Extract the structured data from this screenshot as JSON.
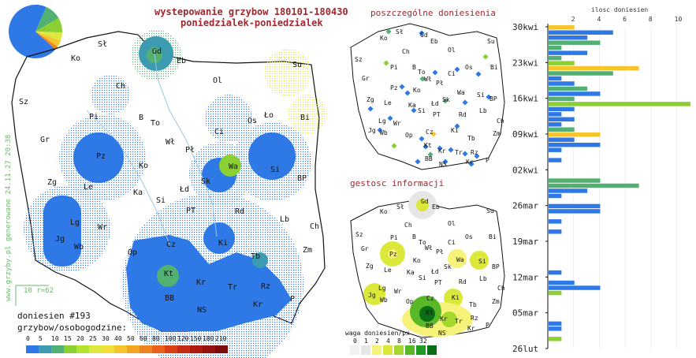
{
  "header": {
    "title": "wystepowanie grzybow 180101-180430",
    "subtitle": "poniedzialek-poniedzialek"
  },
  "side_labels": {
    "generated": "www.grzyby.pl generowane 24.11.27 20:38",
    "reports": "doniesien #193",
    "grid": "10 r=62"
  },
  "main_map": {
    "cities": [
      {
        "name": "Sł",
        "x": 124,
        "y": 59
      },
      {
        "name": "Gd",
        "x": 193,
        "y": 68
      },
      {
        "name": "Eb",
        "x": 224,
        "y": 80
      },
      {
        "name": "Su",
        "x": 371,
        "y": 85
      },
      {
        "name": "Ko",
        "x": 90,
        "y": 77
      },
      {
        "name": "Ol",
        "x": 270,
        "y": 105
      },
      {
        "name": "Ch",
        "x": 147,
        "y": 112
      },
      {
        "name": "Sz",
        "x": 24,
        "y": 132
      },
      {
        "name": "Pi",
        "x": 113,
        "y": 151
      },
      {
        "name": "B",
        "x": 176,
        "y": 152
      },
      {
        "name": "To",
        "x": 191,
        "y": 159
      },
      {
        "name": "Ło",
        "x": 335,
        "y": 149
      },
      {
        "name": "Bi",
        "x": 381,
        "y": 152
      },
      {
        "name": "Os",
        "x": 314,
        "y": 156
      },
      {
        "name": "Ci",
        "x": 272,
        "y": 170
      },
      {
        "name": "Wł",
        "x": 210,
        "y": 183
      },
      {
        "name": "Gr",
        "x": 51,
        "y": 180
      },
      {
        "name": "Pł",
        "x": 235,
        "y": 193
      },
      {
        "name": "Pz",
        "x": 122,
        "y": 201
      },
      {
        "name": "Ko",
        "x": 176,
        "y": 213
      },
      {
        "name": "Wa",
        "x": 290,
        "y": 214
      },
      {
        "name": "Si",
        "x": 343,
        "y": 218
      },
      {
        "name": "Zg",
        "x": 60,
        "y": 234
      },
      {
        "name": "Le",
        "x": 106,
        "y": 240
      },
      {
        "name": "Sk",
        "x": 255,
        "y": 233
      },
      {
        "name": "BP",
        "x": 377,
        "y": 229
      },
      {
        "name": "Ka",
        "x": 169,
        "y": 247
      },
      {
        "name": "Łd",
        "x": 228,
        "y": 243
      },
      {
        "name": "Si",
        "x": 198,
        "y": 257
      },
      {
        "name": "Lb",
        "x": 355,
        "y": 281
      },
      {
        "name": "PT",
        "x": 236,
        "y": 270
      },
      {
        "name": "Rd",
        "x": 298,
        "y": 271
      },
      {
        "name": "Lg",
        "x": 89,
        "y": 285
      },
      {
        "name": "Wr",
        "x": 124,
        "y": 291
      },
      {
        "name": "Ch",
        "x": 393,
        "y": 290
      },
      {
        "name": "Jg",
        "x": 70,
        "y": 306
      },
      {
        "name": "Wb",
        "x": 94,
        "y": 316
      },
      {
        "name": "Cz",
        "x": 211,
        "y": 313
      },
      {
        "name": "Ki",
        "x": 277,
        "y": 311
      },
      {
        "name": "Zm",
        "x": 384,
        "y": 320
      },
      {
        "name": "Op",
        "x": 162,
        "y": 323
      },
      {
        "name": "Tb",
        "x": 318,
        "y": 328
      },
      {
        "name": "Kt",
        "x": 208,
        "y": 350
      },
      {
        "name": "Kr",
        "x": 249,
        "y": 361
      },
      {
        "name": "Tr",
        "x": 289,
        "y": 367
      },
      {
        "name": "Rz",
        "x": 331,
        "y": 366
      },
      {
        "name": "BB",
        "x": 209,
        "y": 381
      },
      {
        "name": "Kr",
        "x": 321,
        "y": 389
      },
      {
        "name": "P",
        "x": 368,
        "y": 382
      },
      {
        "name": "NS",
        "x": 250,
        "y": 396
      }
    ]
  },
  "legend": {
    "title": "grzybow/osobogodzine:",
    "ticks": [
      "0",
      "5",
      "10",
      "15",
      "20",
      "25",
      "30",
      "40",
      "50",
      "60",
      "80",
      "100",
      "120",
      "150",
      "180",
      "210"
    ],
    "colors": [
      "#2e79e6",
      "#3c9bb0",
      "#53b073",
      "#8ccf33",
      "#b3e233",
      "#dce840",
      "#f1e03a",
      "#f6c52e",
      "#f4a524",
      "#ef831f",
      "#e8601a",
      "#d94016",
      "#c52a12",
      "#ad1b10",
      "#951210",
      "#7a0c0b"
    ]
  },
  "small_map_top": {
    "title": "poszczególne doniesienia",
    "cities": [
      {
        "name": "Sł",
        "x": 502,
        "y": 43
      },
      {
        "name": "Gd",
        "x": 533,
        "y": 47
      },
      {
        "name": "Eb",
        "x": 546,
        "y": 55
      },
      {
        "name": "Ko",
        "x": 482,
        "y": 51
      },
      {
        "name": "Su",
        "x": 618,
        "y": 55
      },
      {
        "name": "Ch",
        "x": 510,
        "y": 68
      },
      {
        "name": "Ol",
        "x": 568,
        "y": 66
      },
      {
        "name": "Sz",
        "x": 450,
        "y": 78
      },
      {
        "name": "Pi",
        "x": 495,
        "y": 88
      },
      {
        "name": "B",
        "x": 523,
        "y": 88
      },
      {
        "name": "To",
        "x": 530,
        "y": 94
      },
      {
        "name": "Os",
        "x": 590,
        "y": 88
      },
      {
        "name": "Bi",
        "x": 622,
        "y": 88
      },
      {
        "name": "Ci",
        "x": 568,
        "y": 96
      },
      {
        "name": "Wł",
        "x": 538,
        "y": 103
      },
      {
        "name": "Pł",
        "x": 553,
        "y": 108
      },
      {
        "name": "Gr",
        "x": 459,
        "y": 102
      },
      {
        "name": "Pz",
        "x": 495,
        "y": 114
      },
      {
        "name": "Ko",
        "x": 524,
        "y": 117
      },
      {
        "name": "Wa",
        "x": 580,
        "y": 120
      },
      {
        "name": "Si",
        "x": 605,
        "y": 123
      },
      {
        "name": "Zg",
        "x": 465,
        "y": 129
      },
      {
        "name": "Le",
        "x": 487,
        "y": 133
      },
      {
        "name": "Sk",
        "x": 561,
        "y": 129
      },
      {
        "name": "BP",
        "x": 621,
        "y": 128
      },
      {
        "name": "Ka",
        "x": 518,
        "y": 136
      },
      {
        "name": "Łd",
        "x": 547,
        "y": 134
      },
      {
        "name": "Si",
        "x": 530,
        "y": 143
      },
      {
        "name": "PT",
        "x": 549,
        "y": 148
      },
      {
        "name": "Rd",
        "x": 582,
        "y": 148
      },
      {
        "name": "Lb",
        "x": 608,
        "y": 143
      },
      {
        "name": "Lg",
        "x": 480,
        "y": 156
      },
      {
        "name": "Wr",
        "x": 499,
        "y": 159
      },
      {
        "name": "Ch",
        "x": 630,
        "y": 156
      },
      {
        "name": "Jg",
        "x": 467,
        "y": 168
      },
      {
        "name": "Wb",
        "x": 482,
        "y": 171
      },
      {
        "name": "Cz",
        "x": 540,
        "y": 170
      },
      {
        "name": "Ki",
        "x": 572,
        "y": 168
      },
      {
        "name": "Zm",
        "x": 625,
        "y": 172
      },
      {
        "name": "Op",
        "x": 514,
        "y": 174
      },
      {
        "name": "Tb",
        "x": 593,
        "y": 178
      },
      {
        "name": "Kt",
        "x": 538,
        "y": 187
      },
      {
        "name": "Kr",
        "x": 556,
        "y": 194
      },
      {
        "name": "Tr",
        "x": 577,
        "y": 196
      },
      {
        "name": "Rz",
        "x": 597,
        "y": 196
      },
      {
        "name": "BB",
        "x": 539,
        "y": 204
      },
      {
        "name": "Kr",
        "x": 591,
        "y": 208
      },
      {
        "name": "NS",
        "x": 557,
        "y": 211
      },
      {
        "name": "P",
        "x": 616,
        "y": 206
      }
    ]
  },
  "small_map_bottom": {
    "title": "gestosc informacji",
    "legend_title": "waga doniesien/px",
    "legend_ticks": [
      "0",
      "1",
      "2",
      "4",
      "8",
      "16",
      "32"
    ],
    "legend_colors": [
      "#f2f2f2",
      "#e6e6e6",
      "#f6f27a",
      "#dbe83a",
      "#a5d82c",
      "#58b828",
      "#1f9a22",
      "#0a6e14"
    ],
    "cities": [
      {
        "name": "Sł",
        "x": 503,
        "y": 265
      },
      {
        "name": "Gd",
        "x": 534,
        "y": 258
      },
      {
        "name": "Eb",
        "x": 548,
        "y": 265
      },
      {
        "name": "Ko",
        "x": 482,
        "y": 271
      },
      {
        "name": "Su",
        "x": 617,
        "y": 270
      },
      {
        "name": "Ch",
        "x": 513,
        "y": 288
      },
      {
        "name": "Ol",
        "x": 568,
        "y": 286
      },
      {
        "name": "Sz",
        "x": 451,
        "y": 300
      },
      {
        "name": "Pi",
        "x": 495,
        "y": 304
      },
      {
        "name": "B",
        "x": 523,
        "y": 303
      },
      {
        "name": "To",
        "x": 531,
        "y": 310
      },
      {
        "name": "Os",
        "x": 590,
        "y": 303
      },
      {
        "name": "Bi",
        "x": 620,
        "y": 303
      },
      {
        "name": "Ci",
        "x": 568,
        "y": 310
      },
      {
        "name": "Wł",
        "x": 539,
        "y": 317
      },
      {
        "name": "Pł",
        "x": 553,
        "y": 322
      },
      {
        "name": "Gr",
        "x": 458,
        "y": 318
      },
      {
        "name": "Pz",
        "x": 494,
        "y": 325
      },
      {
        "name": "Ko",
        "x": 524,
        "y": 333
      },
      {
        "name": "Wa",
        "x": 579,
        "y": 332
      },
      {
        "name": "Si",
        "x": 607,
        "y": 334
      },
      {
        "name": "Zg",
        "x": 464,
        "y": 340
      },
      {
        "name": "Le",
        "x": 487,
        "y": 345
      },
      {
        "name": "Sk",
        "x": 563,
        "y": 341
      },
      {
        "name": "BP",
        "x": 624,
        "y": 341
      },
      {
        "name": "Ka",
        "x": 516,
        "y": 348
      },
      {
        "name": "Łd",
        "x": 547,
        "y": 347
      },
      {
        "name": "Si",
        "x": 531,
        "y": 355
      },
      {
        "name": "PT",
        "x": 551,
        "y": 361
      },
      {
        "name": "Rd",
        "x": 582,
        "y": 360
      },
      {
        "name": "Lb",
        "x": 608,
        "y": 356
      },
      {
        "name": "Lg",
        "x": 480,
        "y": 368
      },
      {
        "name": "Wr",
        "x": 500,
        "y": 372
      },
      {
        "name": "Ch",
        "x": 631,
        "y": 368
      },
      {
        "name": "Jg",
        "x": 467,
        "y": 377
      },
      {
        "name": "Wb",
        "x": 482,
        "y": 383
      },
      {
        "name": "Cz",
        "x": 541,
        "y": 381
      },
      {
        "name": "Ki",
        "x": 573,
        "y": 380
      },
      {
        "name": "Zm",
        "x": 624,
        "y": 385
      },
      {
        "name": "Op",
        "x": 515,
        "y": 385
      },
      {
        "name": "Tb",
        "x": 595,
        "y": 389
      },
      {
        "name": "Kt",
        "x": 540,
        "y": 399
      },
      {
        "name": "Kr",
        "x": 558,
        "y": 407
      },
      {
        "name": "Tr",
        "x": 577,
        "y": 410
      },
      {
        "name": "Rz",
        "x": 597,
        "y": 406
      },
      {
        "name": "BB",
        "x": 540,
        "y": 416
      },
      {
        "name": "Kr",
        "x": 593,
        "y": 419
      },
      {
        "name": "NS",
        "x": 556,
        "y": 425
      },
      {
        "name": "P",
        "x": 616,
        "y": 415
      }
    ]
  },
  "chart_data": {
    "type": "bar",
    "title": "ilosc doniesien",
    "x_ticks": [
      "2",
      "4",
      "6",
      "8",
      "10"
    ],
    "y_labels": [
      "30kwi",
      "23kwi",
      "16kwi",
      "09kwi",
      "02kwi",
      "26mar",
      "19mar",
      "12mar",
      "05mar",
      "26lut"
    ],
    "xlim": [
      0,
      11
    ],
    "colors": {
      "primary": "#2e79e6",
      "secondary": "#53b073",
      "tertiary": "#8ccf33",
      "accent": "#f6c52e"
    },
    "bars": [
      {
        "day": "30kwi",
        "value": 2,
        "c": "accent"
      },
      {
        "day": "29kwi",
        "value": 5,
        "c": "primary"
      },
      {
        "day": "28kwi",
        "value": 3,
        "c": "primary"
      },
      {
        "day": "27kwi",
        "value": 4,
        "c": "secondary"
      },
      {
        "day": "26kwi",
        "value": 1,
        "c": "secondary"
      },
      {
        "day": "25kwi",
        "value": 3,
        "c": "primary"
      },
      {
        "day": "24kwi",
        "value": 1,
        "c": "secondary"
      },
      {
        "day": "23kwi",
        "value": 2,
        "c": "tertiary"
      },
      {
        "day": "22kwi",
        "value": 7,
        "c": "accent"
      },
      {
        "day": "21kwi",
        "value": 5,
        "c": "secondary"
      },
      {
        "day": "20kwi",
        "value": 1,
        "c": "primary"
      },
      {
        "day": "19kwi",
        "value": 2,
        "c": "primary"
      },
      {
        "day": "18kwi",
        "value": 3,
        "c": "secondary"
      },
      {
        "day": "17kwi",
        "value": 4,
        "c": "primary"
      },
      {
        "day": "16kwi",
        "value": 2,
        "c": "secondary"
      },
      {
        "day": "15kwi",
        "value": 11,
        "c": "tertiary"
      },
      {
        "day": "14kwi",
        "value": 2,
        "c": "primary"
      },
      {
        "day": "13kwi",
        "value": 1,
        "c": "primary"
      },
      {
        "day": "12kwi",
        "value": 2,
        "c": "primary"
      },
      {
        "day": "11kwi",
        "value": 1,
        "c": "primary"
      },
      {
        "day": "10kwi",
        "value": 2,
        "c": "secondary"
      },
      {
        "day": "09kwi",
        "value": 4,
        "c": "accent"
      },
      {
        "day": "08kwi",
        "value": 2,
        "c": "primary"
      },
      {
        "day": "07kwi",
        "value": 4,
        "c": "primary"
      },
      {
        "day": "06kwi",
        "value": 1,
        "c": "primary"
      },
      {
        "day": "04kwi",
        "value": 1,
        "c": "primary"
      },
      {
        "day": "31mar",
        "value": 4,
        "c": "secondary"
      },
      {
        "day": "30mar",
        "value": 7,
        "c": "secondary"
      },
      {
        "day": "29mar",
        "value": 3,
        "c": "primary"
      },
      {
        "day": "28mar",
        "value": 1,
        "c": "primary"
      },
      {
        "day": "26mar",
        "value": 4,
        "c": "primary"
      },
      {
        "day": "25mar",
        "value": 4,
        "c": "primary"
      },
      {
        "day": "23mar",
        "value": 1,
        "c": "primary"
      },
      {
        "day": "21mar",
        "value": 1,
        "c": "primary"
      },
      {
        "day": "13mar",
        "value": 1,
        "c": "primary"
      },
      {
        "day": "11mar",
        "value": 2,
        "c": "primary"
      },
      {
        "day": "10mar",
        "value": 4,
        "c": "primary"
      },
      {
        "day": "09mar",
        "value": 1,
        "c": "tertiary"
      },
      {
        "day": "03mar",
        "value": 1,
        "c": "primary"
      },
      {
        "day": "02mar",
        "value": 1,
        "c": "primary"
      },
      {
        "day": "28lut",
        "value": 1,
        "c": "tertiary"
      }
    ]
  },
  "pie": {
    "slices": [
      {
        "value": 70,
        "color": "#2e79e6"
      },
      {
        "value": 10,
        "color": "#53b073"
      },
      {
        "value": 9,
        "color": "#8ccf33"
      },
      {
        "value": 5,
        "color": "#dce840"
      },
      {
        "value": 4,
        "color": "#f6c52e"
      },
      {
        "value": 2,
        "color": "#ef831f"
      }
    ]
  }
}
